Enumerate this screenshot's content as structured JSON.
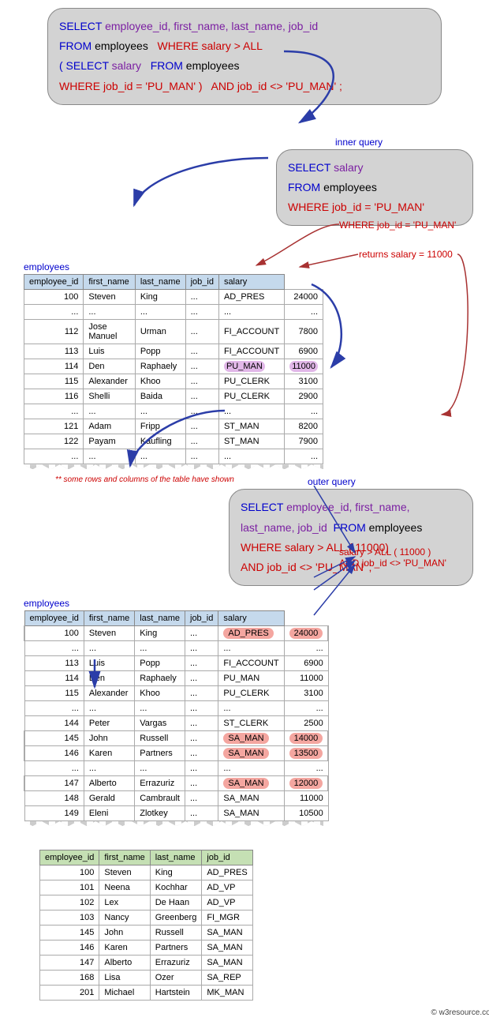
{
  "top_query": {
    "l1": {
      "select": "SELECT",
      "cols": "employee_id, first_name, last_name, job_id"
    },
    "l2": {
      "from": "FROM",
      "tbl": "employees",
      "where": "WHERE",
      "cond": "salary > ALL"
    },
    "l3": {
      "open": "( SELECT",
      "col": "salary",
      "from": "FROM",
      "tbl": "employees"
    },
    "l4": {
      "where": "WHERE",
      "cond": "job_id = 'PU_MAN' )",
      "and": "AND job_id <> 'PU_MAN' ;"
    }
  },
  "inner_label": "inner query",
  "inner_query": {
    "l1": {
      "select": "SELECT",
      "col": "salary"
    },
    "l2": {
      "from": "FROM",
      "tbl": "employees"
    },
    "l3": {
      "where": "WHERE",
      "cond": "job_id = 'PU_MAN'"
    }
  },
  "annot1": "WHERE job_id = 'PU_MAN'",
  "annot2": "returns salary = 11000",
  "table1": {
    "label": "employees",
    "headers": [
      "employee_id",
      "first_name",
      "last_name",
      "job_id",
      "salary"
    ],
    "rows": [
      [
        "100",
        "Steven",
        "King",
        "...",
        "AD_PRES",
        "24000"
      ],
      [
        "...",
        "...",
        "...",
        "...",
        "...",
        "..."
      ],
      [
        "112",
        "Jose Manuel",
        "Urman",
        "...",
        "FI_ACCOUNT",
        "7800"
      ],
      [
        "113",
        "Luis",
        "Popp",
        "...",
        "FI_ACCOUNT",
        "6900"
      ],
      [
        "114",
        "Den",
        "Raphaely",
        "...",
        "PU_MAN",
        "11000"
      ],
      [
        "115",
        "Alexander",
        "Khoo",
        "...",
        "PU_CLERK",
        "3100"
      ],
      [
        "116",
        "Shelli",
        "Baida",
        "...",
        "PU_CLERK",
        "2900"
      ],
      [
        "...",
        "...",
        "...",
        "...",
        "...",
        "..."
      ],
      [
        "121",
        "Adam",
        "Fripp",
        "...",
        "ST_MAN",
        "8200"
      ],
      [
        "122",
        "Payam",
        "Kaufling",
        "...",
        "ST_MAN",
        "7900"
      ],
      [
        "...",
        "...",
        "...",
        "...",
        "...",
        "..."
      ]
    ],
    "highlight_row_index": 4
  },
  "footnote": "** some rows and columns of the table have shown",
  "outer_label": "outer query",
  "outer_query": {
    "l1a": "SELECT",
    "l1b": "employee_id, first_name,",
    "l2a": "last_name, job_id",
    "l2b": "FROM",
    "l2c": "employees",
    "l3a": "WHERE",
    "l3b": "salary > ALL ( 11000)",
    "l4a": "AND",
    "l4b": "job_id <> 'PU_MAN' ;"
  },
  "annot3a": "salary > ALL ( 11000 )",
  "annot3b": "AND job_id <> 'PU_MAN'",
  "table2": {
    "label": "employees",
    "headers": [
      "employee_id",
      "first_name",
      "last_name",
      "job_id",
      "salary"
    ],
    "rows": [
      {
        "d": [
          "100",
          "Steven",
          "King",
          "...",
          "AD_PRES",
          "24000"
        ],
        "hl": true
      },
      {
        "d": [
          "...",
          "...",
          "...",
          "...",
          "...",
          "..."
        ]
      },
      {
        "d": [
          "113",
          "Luis",
          "Popp",
          "...",
          "FI_ACCOUNT",
          "6900"
        ]
      },
      {
        "d": [
          "114",
          "Den",
          "Raphaely",
          "...",
          "PU_MAN",
          "11000"
        ]
      },
      {
        "d": [
          "115",
          "Alexander",
          "Khoo",
          "...",
          "PU_CLERK",
          "3100"
        ]
      },
      {
        "d": [
          "...",
          "...",
          "...",
          "...",
          "...",
          "..."
        ]
      },
      {
        "d": [
          "144",
          "Peter",
          "Vargas",
          "...",
          "ST_CLERK",
          "2500"
        ]
      },
      {
        "d": [
          "145",
          "John",
          "Russell",
          "...",
          "SA_MAN",
          "14000"
        ],
        "hl": true
      },
      {
        "d": [
          "146",
          "Karen",
          "Partners",
          "...",
          "SA_MAN",
          "13500"
        ],
        "hl": true
      },
      {
        "d": [
          "...",
          "...",
          "...",
          "...",
          "...",
          "..."
        ]
      },
      {
        "d": [
          "147",
          "Alberto",
          "Errazuriz",
          "...",
          "SA_MAN",
          "12000"
        ],
        "hl": true
      },
      {
        "d": [
          "148",
          "Gerald",
          "Cambrault",
          "...",
          "SA_MAN",
          "11000"
        ]
      },
      {
        "d": [
          "149",
          "Eleni",
          "Zlotkey",
          "...",
          "SA_MAN",
          "10500"
        ]
      }
    ]
  },
  "table3": {
    "headers": [
      "employee_id",
      "first_name",
      "last_name",
      "job_id"
    ],
    "rows": [
      [
        "100",
        "Steven",
        "King",
        "AD_PRES"
      ],
      [
        "101",
        "Neena",
        "Kochhar",
        "AD_VP"
      ],
      [
        "102",
        "Lex",
        "De Haan",
        "AD_VP"
      ],
      [
        "103",
        "Nancy",
        "Greenberg",
        "FI_MGR"
      ],
      [
        "145",
        "John",
        "Russell",
        "SA_MAN"
      ],
      [
        "146",
        "Karen",
        "Partners",
        "SA_MAN"
      ],
      [
        "147",
        "Alberto",
        "Errazuriz",
        "SA_MAN"
      ],
      [
        "168",
        "Lisa",
        "Ozer",
        "SA_REP"
      ],
      [
        "201",
        "Michael",
        "Hartstein",
        "MK_MAN"
      ]
    ]
  },
  "credit": "© w3resource.com",
  "colors": {
    "arrow_blue": "#2b3da8",
    "arrow_red": "#a83232"
  }
}
